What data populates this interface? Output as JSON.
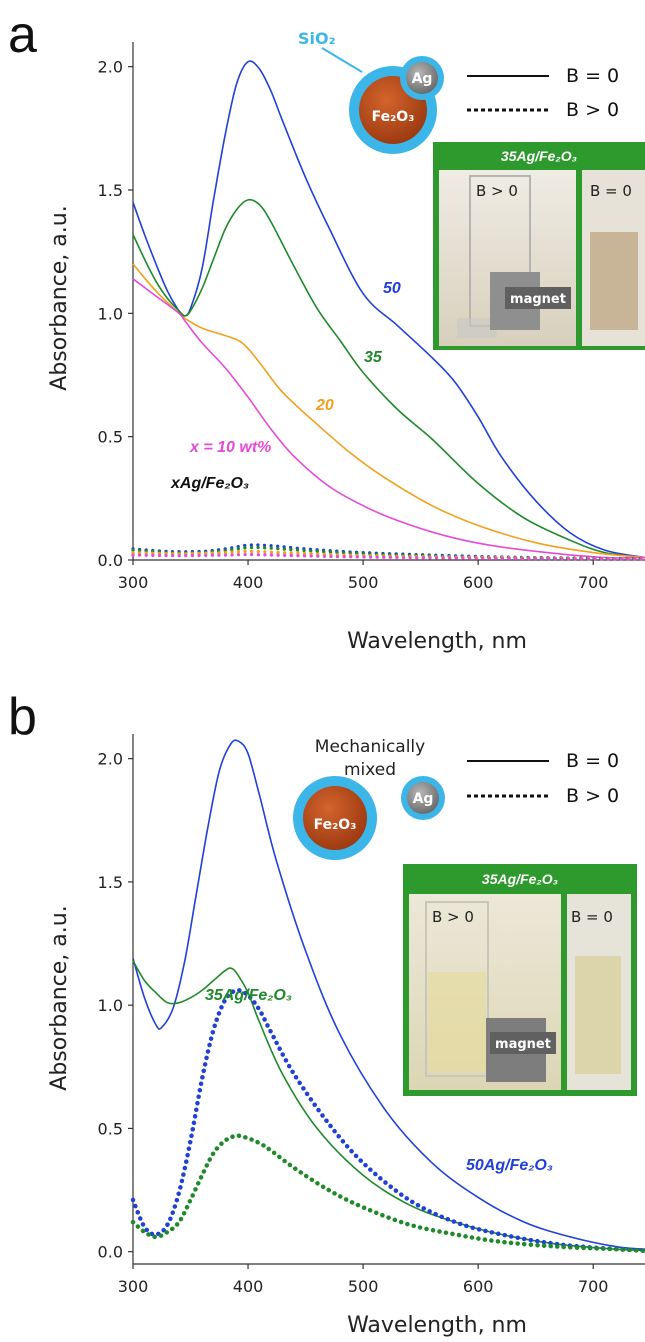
{
  "colors": {
    "blue": "#2040d8",
    "green": "#1f8a2a",
    "orange": "#f2a01e",
    "magenta": "#e54ad8",
    "navy": "#1c1c7a",
    "shell": "#3cb6e8",
    "core": "#b5461a",
    "silver": "#8a8a8a",
    "frame": "#2e9a2e"
  },
  "panel_a": {
    "label": "a",
    "ylabel": "Absorbance, a.u.",
    "xlabel": "Wavelength, nm",
    "shell_label": "SiO₂",
    "core_label": "Fe₂O₃",
    "particle_label": "Ag",
    "legend_solid": "B = 0",
    "legend_dashed": "B > 0",
    "inset_title": "35Ag/Fe₂O₃",
    "inset_left": "B > 0",
    "inset_right": "B = 0",
    "magnet": "magnet",
    "ann_50": "50",
    "ann_35": "35",
    "ann_20": "20",
    "ann_10": "x = 10 wt%",
    "ann_sample": "xAg/Fe₂O₃"
  },
  "panel_b": {
    "label": "b",
    "ylabel": "Absorbance, a.u.",
    "xlabel": "Wavelength, nm",
    "mixed_label_1": "Mechanically",
    "mixed_label_2": "mixed",
    "core_label": "Fe₂O₃",
    "particle_label": "Ag",
    "legend_solid": "B = 0",
    "legend_dashed": "B > 0",
    "inset_title": "35Ag/Fe₂O₃",
    "inset_left": "B > 0",
    "inset_right": "B = 0",
    "magnet": "magnet",
    "ann_35": "35Ag/Fe₂O₃",
    "ann_50": "50Ag/Fe₂O₃"
  },
  "chart_data": [
    {
      "type": "line",
      "xlabel": "Wavelength, nm",
      "ylabel": "Absorbance, a.u.",
      "xlim": [
        300,
        745
      ],
      "ylim": [
        0,
        2.1
      ],
      "xticks": [
        300,
        400,
        500,
        600,
        700
      ],
      "yticks": [
        0.0,
        0.5,
        1.0,
        1.5,
        2.0
      ],
      "ytick_labels": [
        "0.0",
        "0.5",
        "1.0",
        "1.5",
        "2.0"
      ],
      "legend": "top-right",
      "series": [
        {
          "name": "50",
          "style": "solid",
          "color": "blue",
          "x": [
            300,
            310,
            320,
            330,
            340,
            345,
            350,
            360,
            370,
            380,
            390,
            400,
            410,
            420,
            430,
            450,
            470,
            500,
            530,
            560,
            580,
            600,
            620,
            650,
            680,
            710,
            745
          ],
          "y": [
            1.45,
            1.32,
            1.2,
            1.09,
            1.01,
            0.99,
            1.02,
            1.18,
            1.46,
            1.72,
            1.93,
            2.02,
            1.99,
            1.9,
            1.78,
            1.55,
            1.35,
            1.08,
            0.95,
            0.82,
            0.72,
            0.58,
            0.42,
            0.24,
            0.11,
            0.04,
            0.01
          ]
        },
        {
          "name": "35",
          "style": "solid",
          "color": "green",
          "x": [
            300,
            310,
            320,
            330,
            340,
            345,
            350,
            360,
            370,
            380,
            390,
            400,
            410,
            420,
            440,
            460,
            480,
            500,
            530,
            560,
            600,
            640,
            680,
            710,
            745
          ],
          "y": [
            1.32,
            1.22,
            1.13,
            1.06,
            1.01,
            0.99,
            1.01,
            1.1,
            1.22,
            1.34,
            1.42,
            1.46,
            1.44,
            1.37,
            1.19,
            1.02,
            0.89,
            0.76,
            0.61,
            0.49,
            0.31,
            0.17,
            0.08,
            0.03,
            0.01
          ]
        },
        {
          "name": "20",
          "style": "solid",
          "color": "orange",
          "x": [
            300,
            320,
            340,
            345,
            360,
            380,
            395,
            410,
            430,
            460,
            490,
            520,
            560,
            600,
            650,
            700,
            745
          ],
          "y": [
            1.2,
            1.09,
            1.0,
            0.98,
            0.94,
            0.91,
            0.88,
            0.8,
            0.68,
            0.55,
            0.43,
            0.33,
            0.22,
            0.14,
            0.07,
            0.03,
            0.01
          ]
        },
        {
          "name": "x = 10 wt%",
          "style": "solid",
          "color": "magenta",
          "x": [
            300,
            320,
            340,
            345,
            360,
            380,
            400,
            420,
            440,
            470,
            500,
            530,
            570,
            610,
            660,
            710,
            745
          ],
          "y": [
            1.14,
            1.07,
            1.0,
            0.97,
            0.88,
            0.78,
            0.66,
            0.53,
            0.42,
            0.3,
            0.22,
            0.16,
            0.1,
            0.06,
            0.03,
            0.01,
            0.01
          ]
        },
        {
          "name": "50",
          "style": "dotted",
          "color": "blue",
          "x": [
            300,
            330,
            360,
            380,
            400,
            420,
            450,
            500,
            560,
            620,
            680,
            745
          ],
          "y": [
            0.045,
            0.035,
            0.035,
            0.045,
            0.06,
            0.058,
            0.045,
            0.03,
            0.02,
            0.012,
            0.008,
            0.005
          ]
        },
        {
          "name": "35",
          "style": "dotted",
          "color": "green",
          "x": [
            300,
            330,
            360,
            380,
            400,
            420,
            450,
            500,
            560,
            620,
            680,
            745
          ],
          "y": [
            0.04,
            0.03,
            0.03,
            0.038,
            0.05,
            0.048,
            0.038,
            0.025,
            0.016,
            0.01,
            0.007,
            0.004
          ]
        },
        {
          "name": "20",
          "style": "dotted",
          "color": "orange",
          "x": [
            300,
            340,
            380,
            400,
            440,
            500,
            600,
            745
          ],
          "y": [
            0.03,
            0.025,
            0.03,
            0.035,
            0.028,
            0.018,
            0.01,
            0.004
          ]
        },
        {
          "name": "x = 10 wt%",
          "style": "dotted",
          "color": "magenta",
          "x": [
            300,
            340,
            380,
            400,
            440,
            500,
            600,
            745
          ],
          "y": [
            0.02,
            0.018,
            0.02,
            0.022,
            0.018,
            0.012,
            0.007,
            0.003
          ]
        }
      ]
    },
    {
      "type": "line",
      "xlabel": "Wavelength, nm",
      "ylabel": "Absorbance, a.u.",
      "xlim": [
        300,
        745
      ],
      "ylim": [
        -0.05,
        2.1
      ],
      "xticks": [
        300,
        400,
        500,
        600,
        700
      ],
      "yticks": [
        0.0,
        0.5,
        1.0,
        1.5,
        2.0
      ],
      "ytick_labels": [
        "0.0",
        "0.5",
        "1.0",
        "1.5",
        "2.0"
      ],
      "legend": "top-right",
      "series": [
        {
          "name": "50Ag/Fe₂O₃",
          "style": "solid",
          "color": "blue",
          "x": [
            300,
            310,
            320,
            325,
            335,
            345,
            355,
            365,
            375,
            385,
            392,
            400,
            410,
            425,
            450,
            480,
            520,
            560,
            600,
            640,
            680,
            720,
            745
          ],
          "y": [
            1.19,
            1.03,
            0.92,
            0.91,
            0.99,
            1.18,
            1.45,
            1.72,
            1.95,
            2.06,
            2.07,
            2.02,
            1.85,
            1.58,
            1.22,
            0.88,
            0.57,
            0.36,
            0.22,
            0.12,
            0.06,
            0.02,
            0.01
          ]
        },
        {
          "name": "35Ag/Fe₂O₃",
          "style": "solid",
          "color": "green",
          "x": [
            300,
            310,
            320,
            330,
            340,
            350,
            360,
            370,
            380,
            385,
            390,
            400,
            410,
            430,
            460,
            500,
            540,
            580,
            620,
            670,
            720,
            745
          ],
          "y": [
            1.18,
            1.1,
            1.05,
            1.01,
            1.01,
            1.03,
            1.06,
            1.1,
            1.14,
            1.15,
            1.13,
            1.05,
            0.93,
            0.72,
            0.5,
            0.31,
            0.19,
            0.12,
            0.07,
            0.03,
            0.01,
            0.005
          ]
        },
        {
          "name": "50Ag/Fe₂O₃",
          "style": "dotted",
          "color": "blue",
          "x": [
            300,
            310,
            320,
            330,
            340,
            350,
            360,
            370,
            380,
            390,
            400,
            410,
            420,
            440,
            470,
            500,
            540,
            580,
            620,
            670,
            720,
            745
          ],
          "y": [
            0.21,
            0.1,
            0.07,
            0.11,
            0.24,
            0.45,
            0.7,
            0.9,
            1.02,
            1.06,
            1.04,
            0.98,
            0.89,
            0.72,
            0.52,
            0.36,
            0.21,
            0.12,
            0.07,
            0.03,
            0.01,
            0.005
          ]
        },
        {
          "name": "35Ag/Fe₂O₃",
          "style": "dotted",
          "color": "green",
          "x": [
            300,
            310,
            320,
            330,
            340,
            350,
            360,
            370,
            380,
            390,
            400,
            410,
            420,
            440,
            470,
            500,
            540,
            580,
            620,
            670,
            720,
            745
          ],
          "y": [
            0.12,
            0.08,
            0.06,
            0.08,
            0.12,
            0.21,
            0.31,
            0.4,
            0.45,
            0.47,
            0.46,
            0.44,
            0.41,
            0.34,
            0.25,
            0.18,
            0.11,
            0.07,
            0.04,
            0.02,
            0.01,
            0.003
          ]
        }
      ]
    }
  ]
}
